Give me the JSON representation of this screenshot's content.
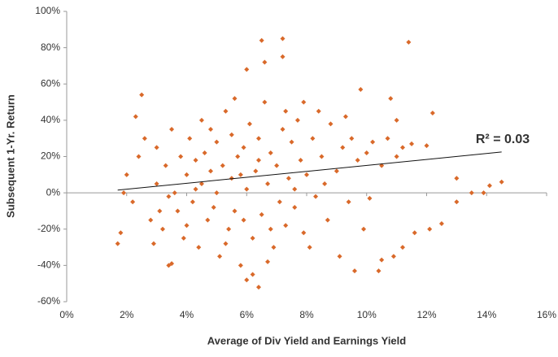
{
  "chart_data": {
    "type": "scatter",
    "x_label": "Average of Div Yield and Earnings Yield",
    "y_label": "Subsequent 1-Yr. Return",
    "annotation": "R² = 0.03",
    "color": "#d9692a",
    "xlim": [
      0,
      16
    ],
    "ylim": [
      -60,
      100
    ],
    "xticks": [
      {
        "value": 0,
        "label": "0%"
      },
      {
        "value": 2,
        "label": "2%"
      },
      {
        "value": 4,
        "label": "4%"
      },
      {
        "value": 6,
        "label": "6%"
      },
      {
        "value": 8,
        "label": "8%"
      },
      {
        "value": 10,
        "label": "10%"
      },
      {
        "value": 12,
        "label": "12%"
      },
      {
        "value": 14,
        "label": "14%"
      },
      {
        "value": 16,
        "label": "16%"
      }
    ],
    "yticks": [
      {
        "value": -60,
        "label": "-60%"
      },
      {
        "value": -40,
        "label": "-40%"
      },
      {
        "value": -20,
        "label": "-20%"
      },
      {
        "value": 0,
        "label": "0%"
      },
      {
        "value": 20,
        "label": "20%"
      },
      {
        "value": 40,
        "label": "40%"
      },
      {
        "value": 60,
        "label": "60%"
      },
      {
        "value": 80,
        "label": "80%"
      },
      {
        "value": 100,
        "label": "100%"
      }
    ],
    "trendline": {
      "x": [
        1.7,
        14.5
      ],
      "y": [
        1.5,
        22.5
      ]
    },
    "x": [
      6.5,
      7.2,
      7.2,
      11.4,
      6.0,
      6.6,
      12.2,
      13.0,
      13.5,
      13.9,
      14.1,
      14.5,
      10.4,
      9.6,
      6.4,
      6.0,
      3.4,
      3.5,
      1.7,
      1.8,
      2.3,
      2.5,
      12.5,
      12.1,
      11.6,
      11.2,
      10.9,
      10.5,
      9.8,
      10.8,
      11.0,
      11.5,
      12.0,
      13.0,
      2.0,
      2.2,
      2.4,
      2.6,
      2.8,
      3.0,
      3.0,
      3.2,
      3.3,
      3.5,
      3.6,
      3.7,
      3.8,
      3.9,
      4.0,
      4.1,
      4.2,
      4.3,
      4.4,
      4.5,
      4.5,
      4.6,
      4.7,
      4.8,
      4.9,
      5.0,
      5.0,
      5.1,
      5.2,
      5.3,
      5.4,
      5.5,
      5.5,
      5.6,
      5.7,
      5.8,
      5.9,
      6.0,
      6.1,
      6.2,
      6.3,
      6.4,
      6.5,
      6.6,
      6.7,
      6.8,
      6.9,
      7.0,
      7.1,
      7.2,
      7.3,
      7.4,
      7.5,
      7.6,
      7.7,
      7.8,
      7.9,
      8.0,
      8.2,
      8.3,
      8.5,
      8.7,
      8.8,
      9.0,
      9.2,
      9.4,
      9.5,
      9.7,
      9.9,
      10.0,
      10.2,
      10.5,
      10.7,
      11.0,
      11.2,
      3.4,
      4.0,
      4.8,
      5.3,
      5.8,
      6.2,
      6.7,
      7.3,
      8.1,
      8.6,
      9.1,
      2.9,
      1.9,
      3.1,
      5.6,
      7.9,
      8.4,
      9.3,
      10.1,
      4.3,
      5.9,
      6.4,
      7.6,
      6.8
    ],
    "values": [
      84,
      85,
      75,
      83,
      68,
      72,
      44,
      8,
      0,
      0,
      4,
      6,
      -43,
      -43,
      -52,
      -48,
      -40,
      -39,
      -28,
      -22,
      42,
      54,
      -17,
      -20,
      -22,
      -30,
      -35,
      -37,
      57,
      52,
      40,
      27,
      26,
      -5,
      10,
      -5,
      20,
      30,
      -15,
      5,
      25,
      -20,
      15,
      35,
      0,
      -10,
      20,
      -25,
      10,
      30,
      -5,
      18,
      -30,
      40,
      5,
      22,
      -15,
      12,
      -8,
      28,
      0,
      -35,
      15,
      45,
      -20,
      8,
      32,
      -10,
      20,
      -40,
      25,
      2,
      38,
      -25,
      12,
      30,
      -12,
      50,
      5,
      22,
      -30,
      15,
      -5,
      35,
      -18,
      8,
      28,
      -8,
      40,
      18,
      -22,
      10,
      30,
      -2,
      20,
      -15,
      38,
      12,
      25,
      -5,
      30,
      18,
      -20,
      22,
      28,
      15,
      30,
      20,
      25,
      -2,
      -18,
      35,
      -28,
      10,
      -45,
      -38,
      45,
      -30,
      5,
      -35,
      -28,
      0,
      -10,
      52,
      50,
      45,
      42,
      -3,
      2,
      -15,
      18,
      2,
      -20
    ]
  }
}
